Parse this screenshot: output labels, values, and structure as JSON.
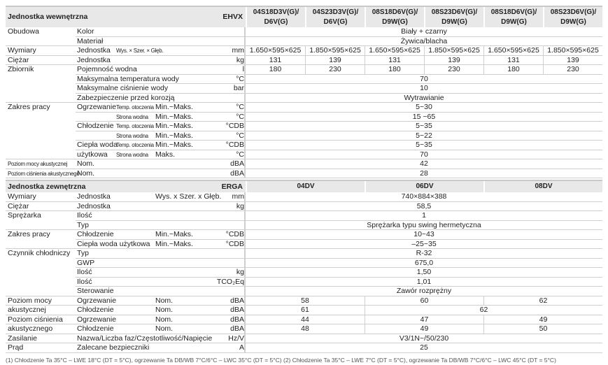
{
  "indoor": {
    "title": "Jednostka wewnętrzna",
    "model": "EHVX",
    "columns": [
      "04S18D3V(G)/\nD6V(G)",
      "04S23D3V(G)/\nD6V(G)",
      "08S18D6V(G)/\nD9W(G)",
      "08S23D6V(G)/\nD9W(G)",
      "08S18D6V(G)/\nD9W(G)",
      "08S23D6V(G)/\nD9W(G)"
    ],
    "rows": [
      {
        "l1": "Obudowa",
        "l2": "Kolor",
        "l3": "",
        "l4": "",
        "unit": "",
        "values": "Biały + czarny"
      },
      {
        "l1": "",
        "l2": "Materiał",
        "l3": "",
        "l4": "",
        "unit": "",
        "values": "Żywica/blacha"
      },
      {
        "l1": "Wymiary",
        "l2": "Jednostka",
        "l3": "Wys. × Szer. × Głęb.",
        "l4": "",
        "unit": "mm",
        "values": [
          "1.650×595×625",
          "1.850×595×625",
          "1.650×595×625",
          "1.850×595×625",
          "1.650×595×625",
          "1.850×595×625"
        ]
      },
      {
        "l1": "Ciężar",
        "l2": "Jednostka",
        "l3": "",
        "l4": "",
        "unit": "kg",
        "values": [
          "131",
          "139",
          "131",
          "139",
          "131",
          "139"
        ]
      },
      {
        "l1": "Zbiornik",
        "l2": "Pojemność wodna",
        "l3": "",
        "l4": "",
        "unit": "l",
        "values": [
          "180",
          "230",
          "180",
          "230",
          "180",
          "230"
        ]
      },
      {
        "l1": "",
        "l2": "Maksymalna temperatura wody",
        "l3": "",
        "l4": "",
        "unit": "°C",
        "values": "70"
      },
      {
        "l1": "",
        "l2": "Maksymalne ciśnienie wody",
        "l3": "",
        "l4": "",
        "unit": "bar",
        "values": "10"
      },
      {
        "l1": "",
        "l2": "Zabezpieczenie przed korozją",
        "l3": "",
        "l4": "",
        "unit": "",
        "values": "Wytrawianie"
      },
      {
        "l1": "Zakres pracy",
        "l2": "Ogrzewanie",
        "l3": "Temp. otoczenia",
        "l4": "Min.~Maks.",
        "unit": "°C",
        "values": "5~30"
      },
      {
        "l1": "",
        "l2": "",
        "l3": "Strona wodna",
        "l4": "Min.~Maks.",
        "unit": "°C",
        "values": "15 ~65"
      },
      {
        "l1": "",
        "l2": "Chłodzenie",
        "l3": "Temp. otoczenia",
        "l4": "Min.~Maks.",
        "unit": "°CDB",
        "values": "5~35"
      },
      {
        "l1": "",
        "l2": "",
        "l3": "Strona wodna",
        "l4": "Min.~Maks.",
        "unit": "°C",
        "values": "5~22"
      },
      {
        "l1": "",
        "l2": "Ciepła woda",
        "l3": "Temp. otoczenia",
        "l4": "Min.~Maks.",
        "unit": "°CDB",
        "values": "5~35"
      },
      {
        "l1": "",
        "l2": "użytkowa",
        "l3": "Strona wodna",
        "l4": "Maks.",
        "unit": "°C",
        "values": "70"
      },
      {
        "l1": "Poziom mocy akustycznej",
        "small": true,
        "l2": "Nom.",
        "l3": "",
        "l4": "",
        "unit": "dBA",
        "values": "42"
      },
      {
        "l1": "Poziom ciśnienia akustycznego",
        "small": true,
        "l2": "Nom.",
        "l3": "",
        "l4": "",
        "unit": "dBA",
        "values": "28"
      }
    ]
  },
  "outdoor": {
    "title": "Jednostka zewnętrzna",
    "model": "ERGA",
    "columns": [
      "04DV",
      "06DV",
      "08DV"
    ],
    "rows": [
      {
        "l1": "Wymiary",
        "l2": "Jednostka",
        "l4": "Wys. x Szer. x Głęb.",
        "unit": "mm",
        "values": "740×884×388"
      },
      {
        "l1": "Ciężar",
        "l2": "Jednostka",
        "l4": "",
        "unit": "kg",
        "values": "58,5"
      },
      {
        "l1": "Sprężarka",
        "l2": "Ilość",
        "l4": "",
        "unit": "",
        "values": "1"
      },
      {
        "l1": "",
        "l2": "Typ",
        "l4": "",
        "unit": "",
        "values": "Sprężarka typu swing hermetyczna"
      },
      {
        "l1": "Zakres pracy",
        "l2": "Chłodzenie",
        "l4": "Min.~Maks.",
        "unit": "°CDB",
        "values": "10~43"
      },
      {
        "l1": "",
        "l2": "Ciepła woda użytkowa",
        "l4": "Min.~Maks.",
        "unit": "°CDB",
        "values": "–25~35"
      },
      {
        "l1": "Czynnik chłodniczy",
        "l2": "Typ",
        "l4": "",
        "unit": "",
        "values": "R-32"
      },
      {
        "l1": "",
        "l2": "GWP",
        "l4": "",
        "unit": "",
        "values": "675,0"
      },
      {
        "l1": "",
        "l2": "Ilość",
        "l4": "",
        "unit": "kg",
        "values": "1,50"
      },
      {
        "l1": "",
        "l2": "Ilość",
        "l4": "",
        "unit": "TCO₂Eq",
        "values": "1,01"
      },
      {
        "l1": "",
        "l2": "Sterowanie",
        "l4": "",
        "unit": "",
        "values": "Zawór rozprężny"
      },
      {
        "l1": "Poziom mocy",
        "l2": "Ogrzewanie",
        "l4": "Nom.",
        "unit": "dBA",
        "values": [
          {
            "v": "58",
            "span": 1
          },
          {
            "v": "60",
            "span": 1
          },
          {
            "v": "62",
            "span": 1
          }
        ]
      },
      {
        "l1": "akustycznej",
        "l2": "Chłodzenie",
        "l4": "Nom.",
        "unit": "dBA",
        "values": [
          {
            "v": "61",
            "span": 1
          },
          {
            "v": "62",
            "span": 2
          }
        ]
      },
      {
        "l1": "Poziom ciśnienia",
        "l2": "Ogrzewanie",
        "l4": "Nom.",
        "unit": "dBA",
        "values": [
          {
            "v": "44",
            "span": 1
          },
          {
            "v": "47",
            "span": 1
          },
          {
            "v": "49",
            "span": 1
          }
        ]
      },
      {
        "l1": "akustycznego",
        "l2": "Chłodzenie",
        "l4": "Nom.",
        "unit": "dBA",
        "values": [
          {
            "v": "48",
            "span": 1
          },
          {
            "v": "49",
            "span": 1
          },
          {
            "v": "50",
            "span": 1
          }
        ]
      },
      {
        "l1": "Zasilanie",
        "l2": "Nazwa/Liczba faz/Częstotliwość/Napięcie",
        "l4": "",
        "unit": "Hz/V",
        "values": "V3/1N~/50/230"
      },
      {
        "l1": "Prąd",
        "l2": "Zalecane bezpieczniki",
        "l4": "",
        "unit": "A",
        "values": "25"
      }
    ]
  },
  "footnote": "(1) Chłodzenie Ta 35°C – LWE 18°C (DT = 5°C), ogrzewanie Ta DB/WB 7°C/6°C – LWC 35°C (DT = 5°C) (2) Chłodzenie Ta 35°C – LWE 7°C (DT = 5°C), ogrzewanie Ta DB/WB 7°C/6°C – LWC 45°C (DT = 5°C)"
}
